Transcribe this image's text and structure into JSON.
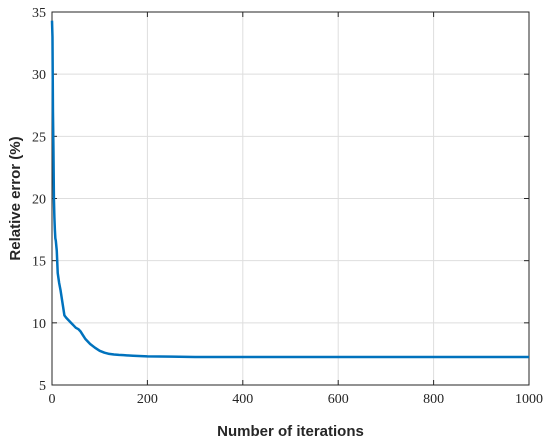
{
  "chart_data": {
    "type": "line",
    "title": "",
    "xlabel": "Number of iterations",
    "ylabel": "Relative error (%)",
    "xlim": [
      0,
      1000
    ],
    "ylim": [
      5,
      35
    ],
    "xticks": [
      0,
      200,
      400,
      600,
      800,
      1000
    ],
    "yticks": [
      5,
      10,
      15,
      20,
      25,
      30,
      35
    ],
    "xtick_labels": [
      "0",
      "200",
      "400",
      "600",
      "800",
      "1000"
    ],
    "ytick_labels": [
      "5",
      "10",
      "15",
      "20",
      "25",
      "30",
      "35"
    ],
    "grid": true,
    "colors": {
      "line": "#0072BD",
      "grid": "#dedede",
      "axis": "#262626"
    },
    "series": [
      {
        "x": [
          0,
          1,
          2,
          3,
          4,
          5,
          6,
          7,
          8,
          10,
          12,
          15,
          18,
          22,
          26,
          30,
          35,
          40,
          45,
          50,
          55,
          60,
          65,
          70,
          80,
          90,
          100,
          110,
          120,
          130,
          140,
          150,
          170,
          200,
          250,
          300,
          400,
          500,
          600,
          700,
          800,
          900,
          1000
        ],
        "y": [
          34.3,
          33.0,
          27.0,
          24.0,
          20.0,
          18.5,
          17.5,
          16.8,
          16.6,
          15.8,
          14.0,
          13.2,
          12.6,
          11.6,
          10.6,
          10.4,
          10.2,
          10.0,
          9.8,
          9.6,
          9.5,
          9.3,
          9.0,
          8.7,
          8.3,
          8.0,
          7.75,
          7.6,
          7.5,
          7.45,
          7.42,
          7.4,
          7.35,
          7.3,
          7.28,
          7.25,
          7.25,
          7.25,
          7.25,
          7.25,
          7.25,
          7.25,
          7.25
        ]
      }
    ]
  }
}
